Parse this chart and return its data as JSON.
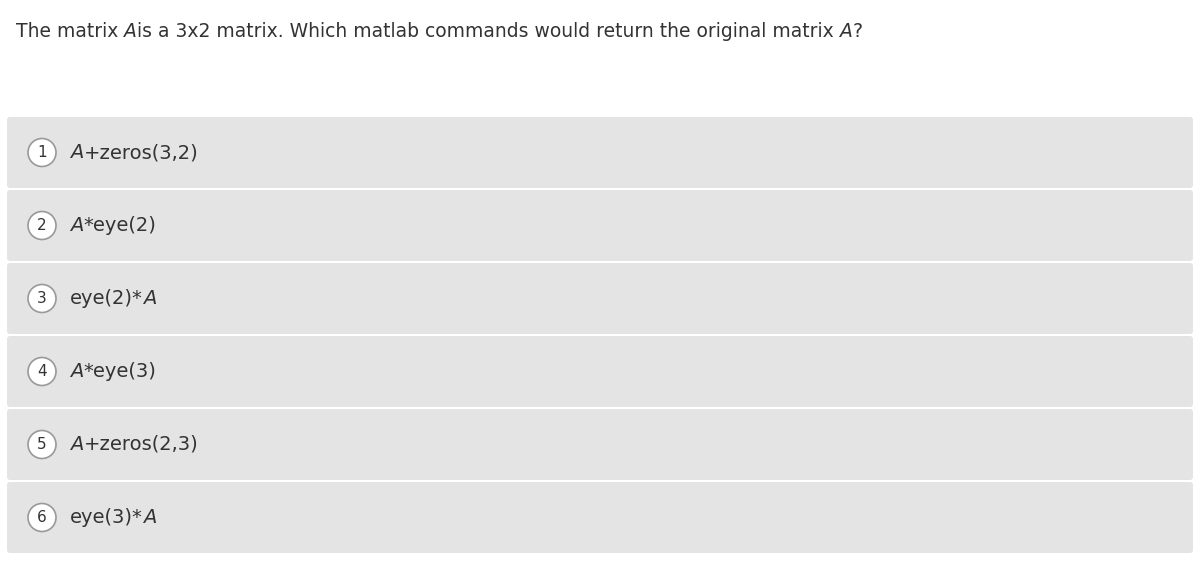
{
  "title_parts": [
    {
      "text": "The matrix ",
      "italic": false
    },
    {
      "text": "A",
      "italic": true
    },
    {
      "text": "is a 3x2 matrix. Which matlab commands would return the original matrix ",
      "italic": false
    },
    {
      "text": "A",
      "italic": true
    },
    {
      "text": "?",
      "italic": false
    }
  ],
  "options": [
    {
      "num": 1,
      "text": "A+zeros(3,2)"
    },
    {
      "num": 2,
      "text": "A*eye(2)"
    },
    {
      "num": 3,
      "text": "eye(2)*A"
    },
    {
      "num": 4,
      "text": "A*eye(3)"
    },
    {
      "num": 5,
      "text": "A+zeros(2,3)"
    },
    {
      "num": 6,
      "text": "eye(3)*A"
    }
  ],
  "bg_color": "#ffffff",
  "row_bg_color": "#e4e4e4",
  "text_color": "#333333",
  "circle_edge_color": "#999999",
  "title_fontsize": 13.5,
  "option_fontsize": 14,
  "num_fontsize": 11,
  "fig_width": 12.0,
  "fig_height": 5.61,
  "dpi": 100
}
